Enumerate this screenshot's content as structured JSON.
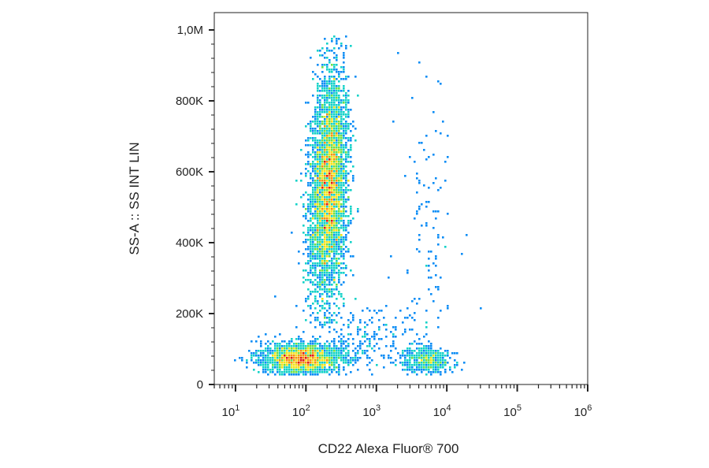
{
  "chart_data": {
    "type": "scatter",
    "subtype": "flow-cytometry density dot plot",
    "title": "",
    "xlabel": "CD22 Alexa Fluor® 700",
    "ylabel": "SS-A :: SS INT LIN",
    "x_scale": "log",
    "y_scale": "linear",
    "xlim": [
      5,
      1000000
    ],
    "ylim": [
      0,
      1000000
    ],
    "x_ticks": [
      {
        "value": 10,
        "base": "10",
        "exp": "1"
      },
      {
        "value": 100,
        "base": "10",
        "exp": "2"
      },
      {
        "value": 1000,
        "base": "10",
        "exp": "3"
      },
      {
        "value": 10000,
        "base": "10",
        "exp": "4"
      },
      {
        "value": 100000,
        "base": "10",
        "exp": "5"
      },
      {
        "value": 1000000,
        "base": "10",
        "exp": "6"
      }
    ],
    "y_ticks": [
      {
        "value": 0,
        "label": "0"
      },
      {
        "value": 200000,
        "label": "200K"
      },
      {
        "value": 400000,
        "label": "400K"
      },
      {
        "value": 600000,
        "label": "600K"
      },
      {
        "value": 800000,
        "label": "800K"
      },
      {
        "value": 1000000,
        "label": "1,0M"
      }
    ],
    "grid": false,
    "density_colormap": [
      "#1a12d6",
      "#0a8cf5",
      "#14d2c8",
      "#6ee046",
      "#f2e21a",
      "#f5930f",
      "#e11a12"
    ],
    "populations": [
      {
        "x_log10_center": 2.32,
        "y_center": 560000,
        "x_log10_sd": 0.13,
        "y_sd": 160000,
        "tilt": 0.08,
        "count": 5600,
        "ymin": 160000,
        "ymax": 985000
      },
      {
        "x_log10_center": 1.93,
        "y_center": 72000,
        "x_log10_sd": 0.28,
        "y_sd": 21000,
        "tilt": 0,
        "count": 2200,
        "ymin": 25000,
        "ymax": 150000
      },
      {
        "x_log10_center": 3.7,
        "y_center": 70000,
        "x_log10_sd": 0.17,
        "y_sd": 19000,
        "tilt": 0,
        "count": 520,
        "ymin": 25000,
        "ymax": 160000
      },
      {
        "x_log10_center": 2.78,
        "y_center": 120000,
        "x_log10_sd": 0.4,
        "y_sd": 50000,
        "tilt": 0,
        "count": 260,
        "ymin": 30000,
        "ymax": 280000
      },
      {
        "x_log10_center": 3.75,
        "y_center": 400000,
        "x_log10_sd": 0.2,
        "y_sd": 230000,
        "tilt": 0,
        "count": 120,
        "ymin": 150000,
        "ymax": 980000
      }
    ]
  }
}
